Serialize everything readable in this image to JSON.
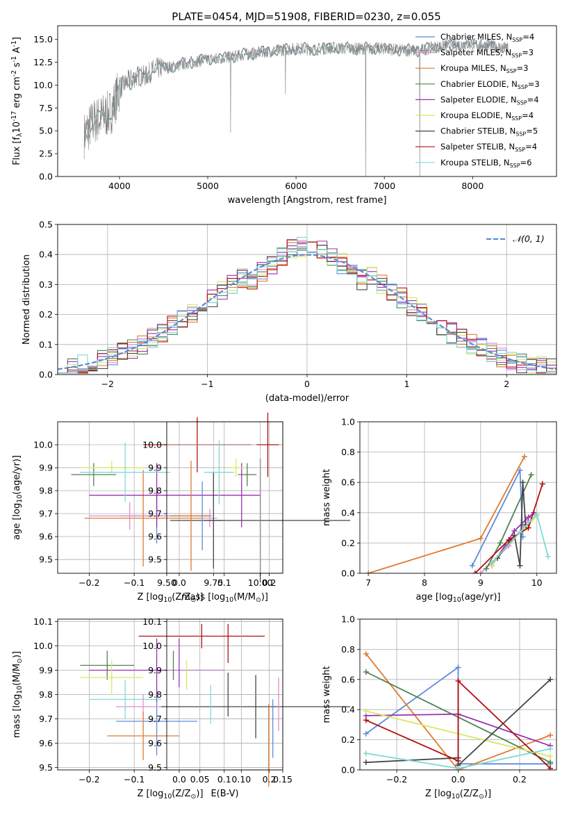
{
  "figure_title": "PLATE=0454, MJD=51908, FIBERID=0230, z=0.055",
  "colors": {
    "Chabrier MILES": "#5b8bd9",
    "Salpeter MILES": "#e08fd0",
    "Kroupa MILES": "#e07a2e",
    "Chabrier ELODIE": "#4f8050",
    "Salpeter ELODIE": "#9c2fb0",
    "Kroupa ELODIE": "#d8e860",
    "Chabrier STELIB": "#444444",
    "Salpeter STELIB": "#b01010",
    "Kroupa STELIB": "#80d8d8",
    "data": "#808080"
  },
  "chart_data": [
    {
      "id": "spectrum",
      "type": "line",
      "title": "PLATE=0454, MJD=51908, FIBERID=0230, z=0.055",
      "xlabel": "wavelength [Angstrom, rest frame]",
      "ylabel": "Flux [f$_\\lambda$10$^{-17}$ erg cm$^{-2}$ s$^{-1}$ A$^{-1}$]",
      "xlim": [
        3300,
        8950
      ],
      "ylim": [
        0,
        16.5
      ],
      "xticks": [
        4000,
        5000,
        6000,
        7000,
        8000
      ],
      "yticks": [
        0.0,
        2.5,
        5.0,
        7.5,
        10.0,
        12.5,
        15.0
      ],
      "legend_position": "upper right",
      "legend": [
        {
          "label": "Chabrier MILES, N",
          "sub": "SSP",
          "eq": "=4"
        },
        {
          "label": "Salpeter MILES, N",
          "sub": "SSP",
          "eq": "=3"
        },
        {
          "label": "Kroupa MILES, N",
          "sub": "SSP",
          "eq": "=3"
        },
        {
          "label": "Chabrier ELODIE, N",
          "sub": "SSP",
          "eq": "=3"
        },
        {
          "label": "Salpeter ELODIE, N",
          "sub": "SSP",
          "eq": "=4"
        },
        {
          "label": "Kroupa ELODIE, N",
          "sub": "SSP",
          "eq": "=4"
        },
        {
          "label": "Chabrier STELIB, N",
          "sub": "SSP",
          "eq": "=5"
        },
        {
          "label": "Salpeter STELIB, N",
          "sub": "SSP",
          "eq": "=4"
        },
        {
          "label": "Kroupa STELIB, N",
          "sub": "SSP",
          "eq": "=6"
        }
      ],
      "continuum": {
        "x": [
          3600,
          3700,
          3800,
          3900,
          4000,
          4100,
          4200,
          4300,
          4400,
          4600,
          4800,
          5000,
          5200,
          5400,
          5600,
          5800,
          6000,
          6200,
          6400,
          6600,
          6800,
          7000,
          7200,
          7400,
          7600,
          7800,
          8000,
          8200,
          8400
        ],
        "y": [
          4.5,
          6.0,
          6.5,
          7.0,
          9.5,
          10.5,
          11.0,
          11.0,
          11.8,
          12.0,
          12.5,
          12.8,
          13.0,
          13.3,
          13.6,
          13.8,
          14.0,
          13.9,
          14.1,
          14.0,
          14.0,
          14.0,
          13.8,
          13.8,
          14.2,
          14.4,
          14.5,
          14.3,
          14.0
        ]
      },
      "spikes": [
        {
          "x": 5260,
          "y": 4.8
        },
        {
          "x": 5880,
          "y": 9.0
        },
        {
          "x": 6790,
          "y": 0.0
        },
        {
          "x": 7400,
          "y": 0.0
        }
      ]
    },
    {
      "id": "residuals",
      "type": "histogram",
      "xlabel": "(data-model)/error",
      "ylabel": "Normed distribution",
      "xlim": [
        -2.5,
        2.5
      ],
      "ylim": [
        0,
        0.5
      ],
      "xticks": [
        -2,
        -1,
        0,
        1,
        2
      ],
      "yticks": [
        0.0,
        0.1,
        0.2,
        0.3,
        0.4,
        0.5
      ],
      "legend": "𝒩(0, 1)",
      "legend_position": "upper right",
      "bin_width": 0.1
    },
    {
      "id": "age_vs_Z",
      "type": "errorbar",
      "xlabel": "Z [log$_{10}$(Z/Z$_\\odot$)]",
      "ylabel": "age  [log$_{10}$(age/yr)]",
      "xlim": [
        -0.27,
        0.23
      ],
      "ylim": [
        9.44,
        10.1
      ],
      "xticks": [
        -0.2,
        -0.1,
        0.0,
        0.1,
        0.2
      ],
      "yticks": [
        9.5,
        9.6,
        9.7,
        9.8,
        9.9,
        10.0
      ],
      "points": [
        {
          "model": "Chabrier MILES",
          "x": -0.05,
          "xerr": 0.08,
          "y": 9.69,
          "yerr": 0.12
        },
        {
          "model": "Salpeter MILES",
          "x": -0.11,
          "xerr": 0.09,
          "y": 9.69,
          "yerr": 0.06
        },
        {
          "model": "Kroupa MILES",
          "x": -0.08,
          "xerr": 0.13,
          "y": 9.68,
          "yerr": 0.21
        },
        {
          "model": "Chabrier ELODIE",
          "x": -0.19,
          "xerr": 0.05,
          "y": 9.87,
          "yerr": 0.05
        },
        {
          "model": "Salpeter ELODIE",
          "x": -0.05,
          "xerr": 0.15,
          "y": 9.78,
          "yerr": 0.14
        },
        {
          "model": "Kroupa ELODIE",
          "x": -0.15,
          "xerr": 0.07,
          "y": 9.9,
          "yerr": 0.03
        },
        {
          "model": "Chabrier STELIB",
          "x": 0.18,
          "xerr": 0.2,
          "y": 9.67,
          "yerr": 0.27
        },
        {
          "model": "Salpeter STELIB",
          "x": 0.04,
          "xerr": 0.12,
          "y": 10.0,
          "yerr": 0.12
        },
        {
          "model": "Kroupa STELIB",
          "x": -0.12,
          "xerr": 0.1,
          "y": 9.88,
          "yerr": 0.13
        }
      ]
    },
    {
      "id": "age_vs_mass",
      "type": "errorbar",
      "xlabel": "mass [log$_{10}$(M/M$_\\odot$)]",
      "ylabel": "",
      "xlim": [
        9.5,
        10.12
      ],
      "ylim": [
        9.44,
        10.1
      ],
      "xticks": [
        9.5,
        9.75,
        10.0
      ],
      "yticks": [
        9.5,
        9.6,
        9.7,
        9.8,
        9.9,
        10.0
      ],
      "points": [
        {
          "model": "Chabrier MILES",
          "x": 9.69,
          "xerr": 0.05,
          "y": 9.69,
          "yerr": 0.15
        },
        {
          "model": "Salpeter MILES",
          "x": 9.73,
          "xerr": 0.04,
          "y": 9.68,
          "yerr": 0.04
        },
        {
          "model": "Kroupa MILES",
          "x": 9.63,
          "xerr": 0.1,
          "y": 9.69,
          "yerr": 0.24
        },
        {
          "model": "Chabrier ELODIE",
          "x": 9.93,
          "xerr": 0.05,
          "y": 9.87,
          "yerr": 0.05
        },
        {
          "model": "Salpeter ELODIE",
          "x": 9.9,
          "xerr": 0.1,
          "y": 9.78,
          "yerr": 0.14
        },
        {
          "model": "Kroupa ELODIE",
          "x": 9.87,
          "xerr": 0.04,
          "y": 9.9,
          "yerr": 0.04
        },
        {
          "model": "Chabrier STELIB",
          "x": 9.75,
          "xerr": 0.05,
          "y": 9.67,
          "yerr": 0.21
        },
        {
          "model": "Salpeter STELIB",
          "x": 10.04,
          "xerr": 0.06,
          "y": 10.0,
          "yerr": 0.14
        },
        {
          "model": "Kroupa STELIB",
          "x": 9.78,
          "xerr": 0.08,
          "y": 9.88,
          "yerr": 0.14
        }
      ]
    },
    {
      "id": "massweight_vs_age",
      "type": "line",
      "xlabel": "age  [log$_{10}$(age/yr)]",
      "ylabel": "mass weight",
      "xlim": [
        6.85,
        10.35
      ],
      "ylim": [
        0,
        1.0
      ],
      "xticks": [
        7,
        8,
        9,
        10
      ],
      "yticks": [
        0.0,
        0.2,
        0.4,
        0.6,
        0.8,
        1.0
      ],
      "series": [
        {
          "model": "Chabrier MILES",
          "x": [
            8.85,
            9.7,
            9.75
          ],
          "y": [
            0.05,
            0.68,
            0.24
          ]
        },
        {
          "model": "Kroupa MILES",
          "x": [
            7.0,
            9.0,
            9.78
          ],
          "y": [
            0.0,
            0.23,
            0.77
          ]
        },
        {
          "model": "Salpeter MILES",
          "x": [
            9.0,
            9.5,
            9.85
          ],
          "y": [
            0.0,
            0.18,
            0.35
          ]
        },
        {
          "model": "Chabrier ELODIE",
          "x": [
            9.1,
            9.35,
            9.9
          ],
          "y": [
            0.03,
            0.2,
            0.65
          ]
        },
        {
          "model": "Salpeter ELODIE",
          "x": [
            9.2,
            9.6,
            9.85,
            9.95
          ],
          "y": [
            0.05,
            0.28,
            0.37,
            0.4
          ]
        },
        {
          "model": "Kroupa ELODIE",
          "x": [
            9.2,
            9.5,
            9.8,
            10.0
          ],
          "y": [
            0.05,
            0.2,
            0.3,
            0.38
          ]
        },
        {
          "model": "Chabrier STELIB",
          "x": [
            9.3,
            9.6,
            9.7,
            9.75,
            9.8
          ],
          "y": [
            0.1,
            0.25,
            0.05,
            0.6,
            0.32
          ]
        },
        {
          "model": "Salpeter STELIB",
          "x": [
            8.9,
            9.5,
            9.85,
            10.1
          ],
          "y": [
            0.0,
            0.22,
            0.3,
            0.59
          ]
        },
        {
          "model": "Kroupa STELIB",
          "x": [
            9.2,
            9.7,
            10.0,
            10.2
          ],
          "y": [
            0.07,
            0.27,
            0.39,
            0.11
          ]
        }
      ]
    },
    {
      "id": "mass_vs_Z",
      "type": "errorbar",
      "xlabel": "Z [log$_{10}$(Z/Z$_\\odot$)]",
      "ylabel": "mass [log$_{10}$(M/M$_\\odot$)]",
      "xlim": [
        -0.27,
        0.23
      ],
      "ylim": [
        9.49,
        10.11
      ],
      "xticks": [
        -0.2,
        -0.1,
        0.0,
        0.1,
        0.2
      ],
      "yticks": [
        9.5,
        9.6,
        9.7,
        9.8,
        9.9,
        10.0,
        10.1
      ],
      "points": [
        {
          "model": "Chabrier MILES",
          "x": -0.05,
          "xerr": 0.09,
          "y": 9.69,
          "yerr": 0.14
        },
        {
          "model": "Salpeter MILES",
          "x": -0.08,
          "xerr": 0.06,
          "y": 9.75,
          "yerr": 0.05
        },
        {
          "model": "Kroupa MILES",
          "x": -0.08,
          "xerr": 0.08,
          "y": 9.63,
          "yerr": 0.1
        },
        {
          "model": "Chabrier ELODIE",
          "x": -0.16,
          "xerr": 0.06,
          "y": 9.92,
          "yerr": 0.06
        },
        {
          "model": "Salpeter ELODIE",
          "x": -0.05,
          "xerr": 0.15,
          "y": 9.9,
          "yerr": 0.13
        },
        {
          "model": "Kroupa ELODIE",
          "x": -0.15,
          "xerr": 0.07,
          "y": 9.87,
          "yerr": 0.07
        },
        {
          "model": "Chabrier STELIB",
          "x": 0.17,
          "xerr": 0.21,
          "y": 9.75,
          "yerr": 0.13
        },
        {
          "model": "Salpeter STELIB",
          "x": 0.05,
          "xerr": 0.14,
          "y": 10.04,
          "yerr": 0.05
        },
        {
          "model": "Kroupa STELIB",
          "x": -0.12,
          "xerr": 0.08,
          "y": 9.78,
          "yerr": 0.08
        }
      ]
    },
    {
      "id": "mass_vs_EBV",
      "type": "errorbar",
      "xlabel": "E(B-V)",
      "ylabel": "",
      "xlim": [
        0.01,
        0.15
      ],
      "ylim": [
        9.49,
        10.11
      ],
      "xticks": [
        0.05,
        0.1,
        0.15
      ],
      "yticks": [
        9.5,
        9.6,
        9.7,
        9.8,
        9.9,
        10.0,
        10.1
      ],
      "points": [
        {
          "model": "Chabrier MILES",
          "x": 0.138,
          "y": 9.66,
          "yerr": 0.12
        },
        {
          "model": "Salpeter MILES",
          "x": 0.145,
          "y": 9.76,
          "yerr": 0.11
        },
        {
          "model": "Kroupa MILES",
          "x": 0.133,
          "y": 9.59,
          "yerr": 0.17
        },
        {
          "model": "Chabrier ELODIE",
          "x": 0.018,
          "y": 9.92,
          "yerr": 0.06
        },
        {
          "model": "Salpeter ELODIE",
          "x": 0.025,
          "y": 9.93,
          "yerr": 0.1
        },
        {
          "model": "Kroupa ELODIE",
          "x": 0.034,
          "y": 9.88,
          "yerr": 0.06
        },
        {
          "model": "Chabrier STELIB",
          "x": 0.084,
          "y": 9.8,
          "yerr": 0.09
        },
        {
          "model": "Salpeter STELIB",
          "x": 0.084,
          "y": 10.01,
          "yerr": 0.08
        },
        {
          "model": "Kroupa STELIB",
          "x": 0.063,
          "y": 9.76,
          "yerr": 0.08
        }
      ]
    },
    {
      "id": "massweight_vs_Z",
      "type": "line",
      "xlabel": "Z [log$_{10}$(Z/Z$_\\odot$)]",
      "ylabel": "mass weight",
      "xlim": [
        -0.32,
        0.32
      ],
      "ylim": [
        0,
        1.0
      ],
      "xticks": [
        -0.2,
        0.0,
        0.2
      ],
      "yticks": [
        0.0,
        0.2,
        0.4,
        0.6,
        0.8,
        1.0
      ],
      "series": [
        {
          "model": "Chabrier MILES",
          "x": [
            -0.3,
            0.0,
            0.0,
            0.3
          ],
          "y": [
            0.24,
            0.68,
            0.04,
            0.04
          ]
        },
        {
          "model": "Kroupa MILES",
          "x": [
            -0.3,
            0.0,
            0.3
          ],
          "y": [
            0.77,
            0.0,
            0.23
          ]
        },
        {
          "model": "Chabrier ELODIE",
          "x": [
            -0.3,
            0.3
          ],
          "y": [
            0.65,
            0.05
          ]
        },
        {
          "model": "Salpeter ELODIE",
          "x": [
            -0.3,
            0.0,
            0.3
          ],
          "y": [
            0.36,
            0.37,
            0.16
          ]
        },
        {
          "model": "Kroupa ELODIE",
          "x": [
            -0.3,
            0.3
          ],
          "y": [
            0.39,
            0.09
          ]
        },
        {
          "model": "Chabrier STELIB",
          "x": [
            -0.3,
            0.0,
            0.0,
            0.3
          ],
          "y": [
            0.05,
            0.08,
            0.03,
            0.6
          ]
        },
        {
          "model": "Salpeter STELIB",
          "x": [
            -0.3,
            0.0,
            0.0,
            0.3
          ],
          "y": [
            0.33,
            0.06,
            0.59,
            0.01
          ]
        },
        {
          "model": "Kroupa STELIB",
          "x": [
            -0.3,
            0.0,
            0.3
          ],
          "y": [
            0.11,
            0.01,
            0.14
          ]
        }
      ]
    }
  ]
}
